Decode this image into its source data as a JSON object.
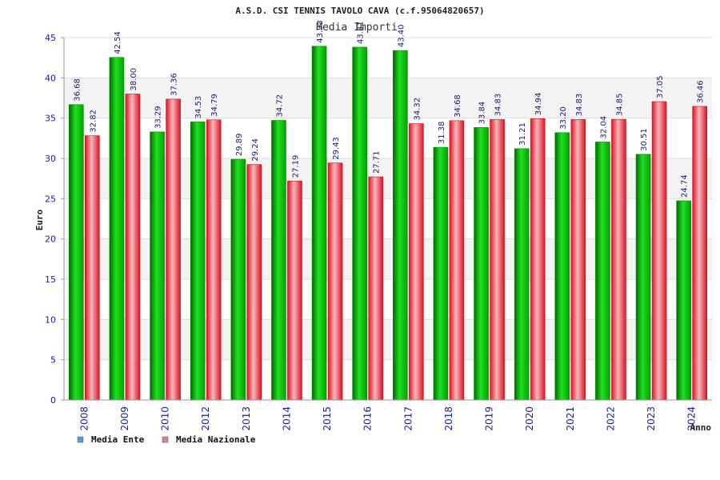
{
  "chart_data": {
    "type": "bar",
    "title": "A.S.D. CSI TENNIS TAVOLO CAVA (c.f.95064820657)",
    "subtitle": "Media Importi",
    "xlabel": "Anno",
    "ylabel": "Euro",
    "ylim": [
      0,
      45
    ],
    "yticks": [
      "0",
      "5",
      "10",
      "15",
      "20",
      "25",
      "30",
      "35",
      "40",
      "45"
    ],
    "categories": [
      "2008",
      "2009",
      "2010",
      "2012",
      "2013",
      "2014",
      "2015",
      "2016",
      "2017",
      "2018",
      "2019",
      "2020",
      "2021",
      "2022",
      "2023",
      "2024"
    ],
    "series": [
      {
        "name": "Media Ente",
        "color": "#00b400",
        "values": [
          36.68,
          42.54,
          33.29,
          34.53,
          29.89,
          34.72,
          43.93,
          43.81,
          43.4,
          31.38,
          33.84,
          31.21,
          33.2,
          32.04,
          30.51,
          24.74
        ]
      },
      {
        "name": "Media Nazionale",
        "color": "#e8303c",
        "values": [
          32.82,
          38.0,
          37.36,
          34.79,
          29.24,
          27.19,
          29.43,
          27.71,
          34.32,
          34.68,
          34.83,
          34.94,
          34.83,
          34.85,
          37.05,
          36.46
        ]
      }
    ],
    "legend": [
      {
        "label": "Media Ente",
        "swatch": "#5b9bd5"
      },
      {
        "label": "Media Nazionale",
        "swatch": "#e07ba0"
      }
    ],
    "legend_position": "bottom-left",
    "grid": true
  }
}
